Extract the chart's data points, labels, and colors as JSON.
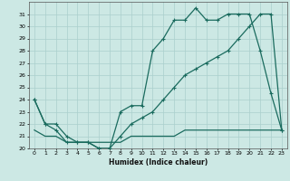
{
  "title": "",
  "xlabel": "Humidex (Indice chaleur)",
  "xlim": [
    -0.5,
    23.5
  ],
  "ylim": [
    20,
    32
  ],
  "yticks": [
    20,
    21,
    22,
    23,
    24,
    25,
    26,
    27,
    28,
    29,
    30,
    31
  ],
  "xticks": [
    0,
    1,
    2,
    3,
    4,
    5,
    6,
    7,
    8,
    9,
    10,
    11,
    12,
    13,
    14,
    15,
    16,
    17,
    18,
    19,
    20,
    21,
    22,
    23
  ],
  "background_color": "#cce8e4",
  "grid_color": "#aacfcc",
  "line_color": "#1a6b5e",
  "line1": [
    24,
    22,
    22,
    21,
    20.5,
    20.5,
    20,
    20,
    23,
    23.5,
    23.5,
    28,
    29,
    30.5,
    30.5,
    31.5,
    30.5,
    30.5,
    31,
    31,
    31,
    28,
    24.5,
    21.5
  ],
  "line2": [
    24,
    22,
    21.5,
    20.5,
    20.5,
    20.5,
    20,
    20,
    21,
    22,
    22.5,
    23,
    24,
    25,
    26,
    26.5,
    27,
    27.5,
    28,
    29,
    30,
    31,
    31,
    21.5
  ],
  "line3": [
    21.5,
    21,
    21,
    20.5,
    20.5,
    20.5,
    20.5,
    20.5,
    20.5,
    21,
    21,
    21,
    21,
    21,
    21.5,
    21.5,
    21.5,
    21.5,
    21.5,
    21.5,
    21.5,
    21.5,
    21.5,
    21.5
  ]
}
